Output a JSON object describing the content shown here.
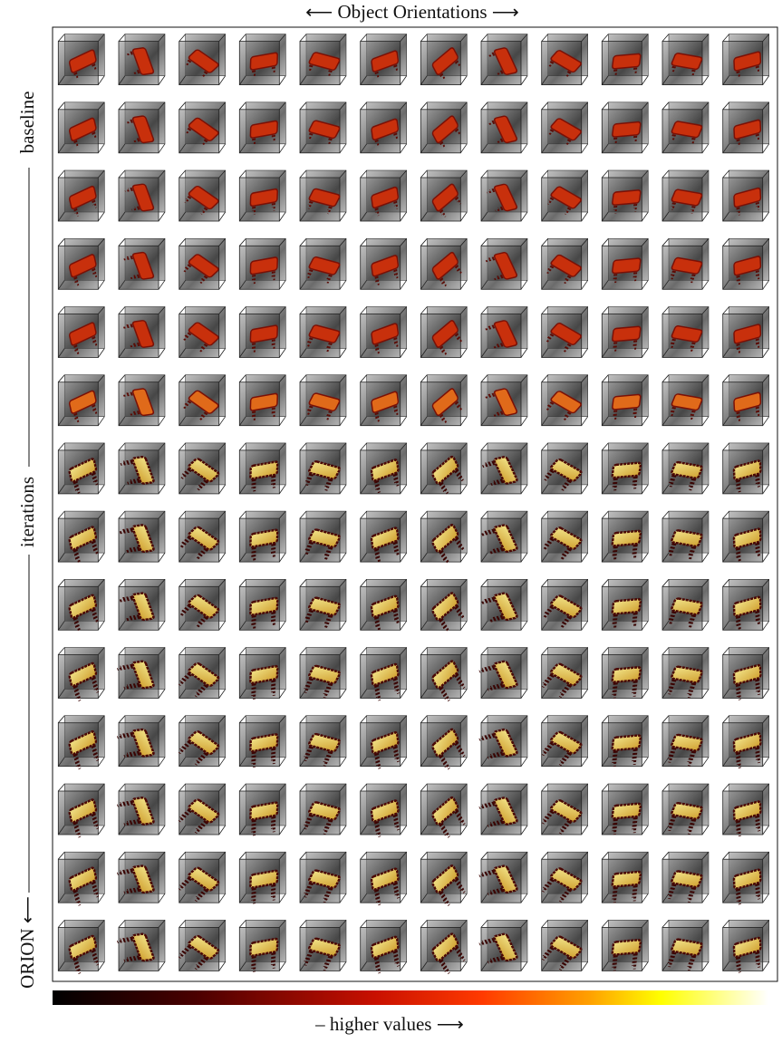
{
  "header": {
    "title": "⟵ Object Orientations ⟶"
  },
  "side_labels": {
    "top": "baseline",
    "middle": "iterations",
    "bottom": "ORION ⟵"
  },
  "colorbar": {
    "label": "– higher values ⟶"
  }
}
